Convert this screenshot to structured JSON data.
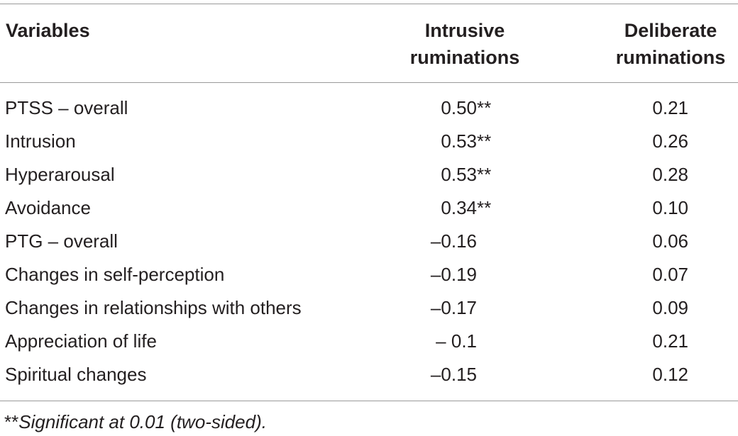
{
  "table": {
    "headers": {
      "variables": "Variables",
      "intrusive": [
        "Intrusive",
        "ruminations"
      ],
      "deliberate": [
        "Deliberate",
        "ruminations"
      ]
    },
    "rows": [
      {
        "label": "PTSS – overall",
        "intrusive": "0.50",
        "sig": "**",
        "deliberate": "0.21"
      },
      {
        "label": "Intrusion",
        "intrusive": "0.53",
        "sig": "**",
        "deliberate": "0.26"
      },
      {
        "label": "Hyperarousal",
        "intrusive": "0.53",
        "sig": "**",
        "deliberate": "0.28"
      },
      {
        "label": "Avoidance",
        "intrusive": "0.34",
        "sig": "**",
        "deliberate": "0.10"
      },
      {
        "label": "PTG – overall",
        "intrusive": "–0.16",
        "sig": "",
        "deliberate": "0.06"
      },
      {
        "label": "Changes in self-perception",
        "intrusive": "–0.19",
        "sig": "",
        "deliberate": "0.07"
      },
      {
        "label": "Changes in relationships with others",
        "intrusive": "–0.17",
        "sig": "",
        "deliberate": "0.09"
      },
      {
        "label": "Appreciation of life",
        "intrusive": "– 0.1",
        "sig": "",
        "deliberate": "0.21"
      },
      {
        "label": "Spiritual changes",
        "intrusive": "–0.15",
        "sig": "",
        "deliberate": "0.12"
      }
    ],
    "footnote": {
      "marker": "**",
      "text": "Significant at 0.01 (two-sided)."
    }
  }
}
